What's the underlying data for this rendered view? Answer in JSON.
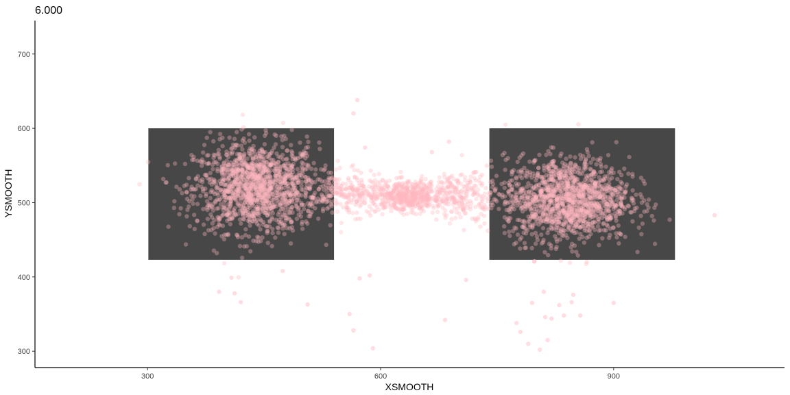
{
  "chart_data": {
    "type": "scatter",
    "title": "6.000",
    "xlabel": "XSMOOTH",
    "ylabel": "YSMOOTH",
    "xlim": [
      155,
      1120
    ],
    "ylim": [
      278,
      745
    ],
    "x_ticks": [
      300,
      600,
      900
    ],
    "y_ticks": [
      300,
      400,
      500,
      600,
      700
    ],
    "x_tick_labels": [
      "300",
      "600",
      "900"
    ],
    "y_tick_labels": [
      "300",
      "400",
      "500",
      "600",
      "700"
    ],
    "grid": false,
    "legend": "none",
    "regions": [
      {
        "x0": 301,
        "x1": 540,
        "y0": 423,
        "y1": 600
      },
      {
        "x0": 740,
        "x1": 979,
        "y0": 423,
        "y1": 600
      }
    ],
    "clusters": [
      {
        "cx": 440,
        "cy": 520,
        "sx": 40,
        "sy": 30,
        "n": 1400
      },
      {
        "cx": 840,
        "cy": 505,
        "sx": 40,
        "sy": 28,
        "n": 1400
      },
      {
        "cx": 635,
        "cy": 508,
        "sx": 22,
        "sy": 10,
        "n": 500
      },
      {
        "cx": 560,
        "cy": 512,
        "sx": 25,
        "sy": 14,
        "n": 250
      },
      {
        "cx": 705,
        "cy": 510,
        "sx": 25,
        "sy": 14,
        "n": 250
      }
    ],
    "outliers": [
      {
        "x": 570,
        "y": 638
      },
      {
        "x": 565,
        "y": 620
      },
      {
        "x": 560,
        "y": 350
      },
      {
        "x": 565,
        "y": 328
      },
      {
        "x": 590,
        "y": 304
      },
      {
        "x": 573,
        "y": 398
      },
      {
        "x": 586,
        "y": 402
      },
      {
        "x": 408,
        "y": 399
      },
      {
        "x": 392,
        "y": 380
      },
      {
        "x": 412,
        "y": 378
      },
      {
        "x": 474,
        "y": 408
      },
      {
        "x": 506,
        "y": 363
      },
      {
        "x": 420,
        "y": 366
      },
      {
        "x": 683,
        "y": 342
      },
      {
        "x": 710,
        "y": 396
      },
      {
        "x": 848,
        "y": 376
      },
      {
        "x": 846,
        "y": 366
      },
      {
        "x": 795,
        "y": 365
      },
      {
        "x": 810,
        "y": 380
      },
      {
        "x": 830,
        "y": 362
      },
      {
        "x": 820,
        "y": 344
      },
      {
        "x": 812,
        "y": 346
      },
      {
        "x": 836,
        "y": 348
      },
      {
        "x": 857,
        "y": 348
      },
      {
        "x": 900,
        "y": 365
      },
      {
        "x": 775,
        "y": 338
      },
      {
        "x": 780,
        "y": 326
      },
      {
        "x": 815,
        "y": 315
      },
      {
        "x": 790,
        "y": 310
      },
      {
        "x": 805,
        "y": 302
      },
      {
        "x": 1030,
        "y": 483
      },
      {
        "x": 798,
        "y": 421
      },
      {
        "x": 580,
        "y": 574
      },
      {
        "x": 666,
        "y": 568
      },
      {
        "x": 688,
        "y": 582
      }
    ],
    "point_color": "#ffb6c1",
    "region_color": "#474747"
  }
}
